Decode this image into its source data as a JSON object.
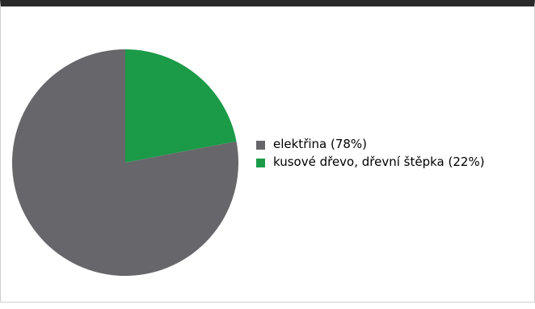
{
  "chart_data": {
    "type": "pie",
    "title": "",
    "slices": [
      {
        "label": "elektřina (78%)",
        "value": 78,
        "color": "#67676b"
      },
      {
        "label": "kusové dřevo, dřevní štěpka (22%)",
        "value": 22,
        "color": "#1b9a48"
      }
    ],
    "start_angle_deg": 0,
    "direction": "counterclockwise",
    "legend_position": "right"
  }
}
